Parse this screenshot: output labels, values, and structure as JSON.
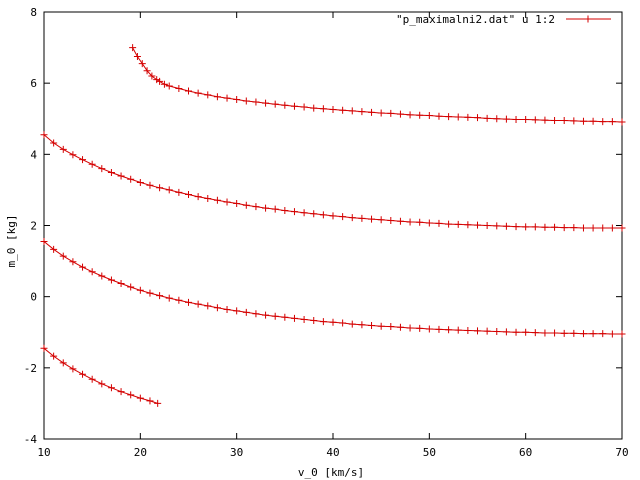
{
  "chart_data": {
    "type": "line",
    "title": "",
    "xlabel": "v_0 [km/s]",
    "ylabel": "m_0 [kg]",
    "xlim": [
      10,
      70
    ],
    "ylim": [
      -4,
      8
    ],
    "xticks": [
      10,
      20,
      30,
      40,
      50,
      60,
      70
    ],
    "yticks": [
      -4,
      -2,
      0,
      2,
      4,
      6,
      8
    ],
    "xtick_labels": [
      "10",
      "20",
      "30",
      "40",
      "50",
      "60",
      "70"
    ],
    "ytick_labels": [
      "-4",
      "-2",
      "0",
      "2",
      "4",
      "6",
      "8"
    ],
    "legend": {
      "position": "top-right",
      "label": "\"p_maximalni2.dat\" u 1:2"
    },
    "grid": false,
    "color": "#d40000",
    "marker": "plus",
    "series": [
      {
        "x": [
          19.2,
          19.7,
          20.2,
          20.7,
          21.2,
          21.7,
          22.0,
          22.5,
          23.0,
          24.0,
          25.0,
          26.0,
          27.0,
          28.0,
          29.0,
          30.0,
          31.0,
          32.0,
          33.0,
          34.0,
          35.0,
          36.0,
          37.0,
          38.0,
          39.0,
          40.0,
          41.0,
          42.0,
          43.0,
          44.0,
          45.0,
          46.0,
          47.0,
          48.0,
          49.0,
          50.0,
          51.0,
          52.0,
          53.0,
          54.0,
          55.0,
          56.0,
          57.0,
          58.0,
          59.0,
          60.0,
          61.0,
          62.0,
          63.0,
          64.0,
          65.0,
          66.0,
          67.0,
          68.0,
          69.0,
          70.0
        ],
        "y": [
          7.0,
          6.75,
          6.55,
          6.35,
          6.2,
          6.1,
          6.05,
          5.97,
          5.92,
          5.85,
          5.78,
          5.72,
          5.67,
          5.62,
          5.58,
          5.54,
          5.5,
          5.47,
          5.44,
          5.41,
          5.38,
          5.35,
          5.33,
          5.3,
          5.28,
          5.26,
          5.24,
          5.22,
          5.2,
          5.18,
          5.16,
          5.15,
          5.13,
          5.11,
          5.1,
          5.09,
          5.07,
          5.06,
          5.05,
          5.04,
          5.03,
          5.01,
          5.0,
          4.99,
          4.98,
          4.98,
          4.97,
          4.96,
          4.95,
          4.95,
          4.94,
          4.93,
          4.93,
          4.92,
          4.92,
          4.91
        ]
      },
      {
        "x": [
          10.0,
          11.0,
          12.0,
          13.0,
          14.0,
          15.0,
          16.0,
          17.0,
          18.0,
          19.0,
          20.0,
          21.0,
          22.0,
          23.0,
          24.0,
          25.0,
          26.0,
          27.0,
          28.0,
          29.0,
          30.0,
          31.0,
          32.0,
          33.0,
          34.0,
          35.0,
          36.0,
          37.0,
          38.0,
          39.0,
          40.0,
          41.0,
          42.0,
          43.0,
          44.0,
          45.0,
          46.0,
          47.0,
          48.0,
          49.0,
          50.0,
          51.0,
          52.0,
          53.0,
          54.0,
          55.0,
          56.0,
          57.0,
          58.0,
          59.0,
          60.0,
          61.0,
          62.0,
          63.0,
          64.0,
          65.0,
          66.0,
          67.0,
          68.0,
          69.0,
          70.0
        ],
        "y": [
          4.55,
          4.32,
          4.14,
          3.99,
          3.85,
          3.72,
          3.6,
          3.49,
          3.39,
          3.3,
          3.21,
          3.13,
          3.06,
          3.0,
          2.93,
          2.87,
          2.81,
          2.76,
          2.71,
          2.66,
          2.62,
          2.57,
          2.53,
          2.49,
          2.46,
          2.42,
          2.39,
          2.36,
          2.33,
          2.3,
          2.27,
          2.25,
          2.22,
          2.2,
          2.18,
          2.16,
          2.14,
          2.12,
          2.1,
          2.09,
          2.07,
          2.06,
          2.04,
          2.03,
          2.02,
          2.01,
          2.0,
          1.99,
          1.98,
          1.97,
          1.96,
          1.96,
          1.95,
          1.95,
          1.94,
          1.94,
          1.93,
          1.93,
          1.93,
          1.93,
          1.93
        ]
      },
      {
        "x": [
          10.0,
          11.0,
          12.0,
          13.0,
          14.0,
          15.0,
          16.0,
          17.0,
          18.0,
          19.0,
          20.0,
          21.0,
          22.0,
          23.0,
          24.0,
          25.0,
          26.0,
          27.0,
          28.0,
          29.0,
          30.0,
          31.0,
          32.0,
          33.0,
          34.0,
          35.0,
          36.0,
          37.0,
          38.0,
          39.0,
          40.0,
          41.0,
          42.0,
          43.0,
          44.0,
          45.0,
          46.0,
          47.0,
          48.0,
          49.0,
          50.0,
          51.0,
          52.0,
          53.0,
          54.0,
          55.0,
          56.0,
          57.0,
          58.0,
          59.0,
          60.0,
          61.0,
          62.0,
          63.0,
          64.0,
          65.0,
          66.0,
          67.0,
          68.0,
          69.0,
          70.0
        ],
        "y": [
          1.55,
          1.33,
          1.14,
          0.98,
          0.83,
          0.7,
          0.58,
          0.47,
          0.37,
          0.27,
          0.18,
          0.1,
          0.03,
          -0.04,
          -0.1,
          -0.16,
          -0.21,
          -0.26,
          -0.31,
          -0.36,
          -0.4,
          -0.44,
          -0.48,
          -0.52,
          -0.55,
          -0.58,
          -0.61,
          -0.64,
          -0.67,
          -0.7,
          -0.72,
          -0.74,
          -0.77,
          -0.79,
          -0.81,
          -0.83,
          -0.84,
          -0.86,
          -0.88,
          -0.89,
          -0.91,
          -0.92,
          -0.93,
          -0.94,
          -0.95,
          -0.96,
          -0.97,
          -0.98,
          -0.99,
          -1.0,
          -1.0,
          -1.01,
          -1.02,
          -1.02,
          -1.03,
          -1.03,
          -1.04,
          -1.04,
          -1.04,
          -1.05,
          -1.05
        ]
      },
      {
        "x": [
          10.0,
          11.0,
          12.0,
          13.0,
          14.0,
          15.0,
          16.0,
          17.0,
          18.0,
          19.0,
          20.0,
          21.0,
          21.8
        ],
        "y": [
          -1.45,
          -1.67,
          -1.86,
          -2.03,
          -2.18,
          -2.32,
          -2.45,
          -2.56,
          -2.67,
          -2.76,
          -2.85,
          -2.93,
          -3.0
        ]
      }
    ]
  }
}
